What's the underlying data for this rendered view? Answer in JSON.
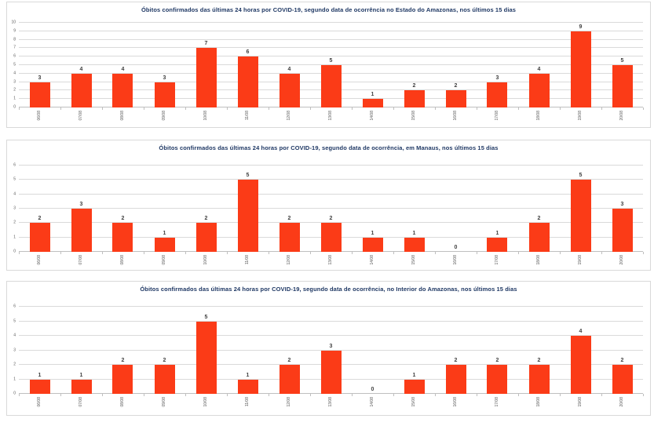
{
  "accent_color": "#fb3b17",
  "title_color": "#1f3864",
  "chart_data": [
    {
      "type": "bar",
      "title": "Óbitos confirmados das últimas 24 horas por COVID-19, segundo data de ocorrência no Estado do Amazonas, nos últimos 15 dias",
      "categories": [
        "06/08",
        "07/08",
        "08/08",
        "09/08",
        "10/08",
        "11/08",
        "12/08",
        "13/08",
        "14/08",
        "15/08",
        "16/08",
        "17/08",
        "18/08",
        "19/08",
        "20/08"
      ],
      "values": [
        3,
        4,
        4,
        3,
        7,
        6,
        4,
        5,
        1,
        2,
        2,
        3,
        4,
        9,
        5
      ],
      "xlabel": "",
      "ylabel": "",
      "ylim": [
        0,
        10
      ],
      "ytick_step": 1,
      "grid": true,
      "legend": false,
      "bar_color": "#fb3b17"
    },
    {
      "type": "bar",
      "title": "Óbitos confirmados das últimas 24 horas por COVID-19, segundo data de ocorrência, em Manaus, nos últimos 15 dias",
      "categories": [
        "06/08",
        "07/08",
        "08/08",
        "09/08",
        "10/08",
        "11/08",
        "12/08",
        "13/08",
        "14/08",
        "15/08",
        "16/08",
        "17/08",
        "18/08",
        "19/08",
        "20/08"
      ],
      "values": [
        2,
        3,
        2,
        1,
        2,
        5,
        2,
        2,
        1,
        1,
        0,
        1,
        2,
        5,
        3
      ],
      "xlabel": "",
      "ylabel": "",
      "ylim": [
        0,
        6
      ],
      "ytick_step": 1,
      "grid": true,
      "legend": false,
      "bar_color": "#fb3b17"
    },
    {
      "type": "bar",
      "title": "Óbitos confirmados das últimas 24 horas por COVID-19, segundo data de ocorrência, no Interior do Amazonas, nos últimos 15 dias",
      "categories": [
        "06/08",
        "07/08",
        "08/08",
        "09/08",
        "10/08",
        "11/08",
        "12/08",
        "13/08",
        "14/08",
        "15/08",
        "16/08",
        "17/08",
        "18/08",
        "19/08",
        "20/08"
      ],
      "values": [
        1,
        1,
        2,
        2,
        5,
        1,
        2,
        3,
        0,
        1,
        2,
        2,
        2,
        4,
        2
      ],
      "xlabel": "",
      "ylabel": "",
      "ylim": [
        0,
        6
      ],
      "ytick_step": 1,
      "grid": true,
      "legend": false,
      "bar_color": "#fb3b17"
    }
  ]
}
